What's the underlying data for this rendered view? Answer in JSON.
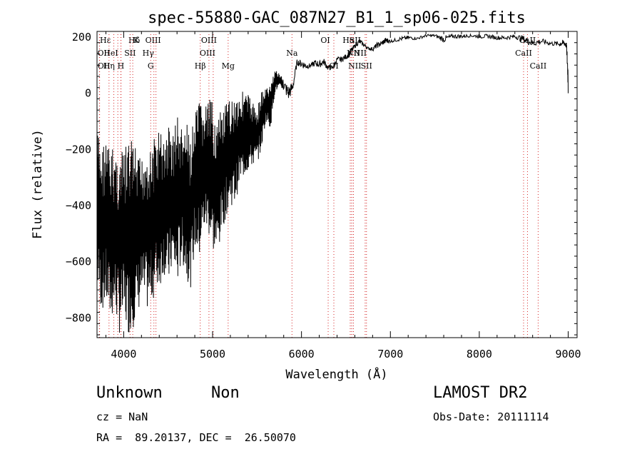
{
  "chart_data": {
    "type": "line",
    "title": "spec-55880-GAC_087N27_B1_1_sp06-025.fits",
    "xlabel": "Wavelength (Å)",
    "ylabel": "Flux (relative)",
    "xlim": [
      3700,
      9100
    ],
    "ylim": [
      -870,
      220
    ],
    "xticks": [
      4000,
      5000,
      6000,
      7000,
      8000,
      9000
    ],
    "yticks": [
      -800,
      -600,
      -400,
      -200,
      0,
      200
    ],
    "grid": false,
    "line_color": "#000000",
    "marker_color": "#d62728",
    "spectrum": {
      "x": [
        3700,
        3750,
        3800,
        3850,
        3900,
        3950,
        4000,
        4050,
        4100,
        4150,
        4200,
        4250,
        4300,
        4350,
        4400,
        4450,
        4500,
        4550,
        4600,
        4650,
        4700,
        4750,
        4800,
        4850,
        4900,
        4950,
        5000,
        5050,
        5100,
        5150,
        5200,
        5250,
        5300,
        5350,
        5400,
        5450,
        5500,
        5550,
        5600,
        5650,
        5700,
        5750,
        5800,
        5850,
        5900,
        5950,
        6000,
        6050,
        6100,
        6150,
        6200,
        6250,
        6300,
        6350,
        6400,
        6450,
        6500,
        6550,
        6600,
        6650,
        6700,
        6750,
        6800,
        6850,
        6900,
        6950,
        7000,
        7100,
        7200,
        7300,
        7400,
        7500,
        7600,
        7700,
        7800,
        7900,
        8000,
        8100,
        8200,
        8300,
        8400,
        8500,
        8600,
        8700,
        8800,
        8900,
        8950,
        8980,
        9000
      ],
      "upper": [
        -120,
        -180,
        -150,
        -200,
        -180,
        -220,
        -200,
        -170,
        -150,
        -220,
        -230,
        -160,
        -200,
        -150,
        -120,
        -160,
        -100,
        -140,
        -60,
        -120,
        -100,
        -150,
        -80,
        -20,
        -40,
        -20,
        -30,
        -90,
        -60,
        -40,
        -20,
        0,
        10,
        10,
        0,
        -30,
        -50,
        10,
        20,
        30,
        90,
        70,
        50,
        30,
        40,
        120,
        120,
        110,
        105,
        120,
        115,
        125,
        100,
        100,
        130,
        130,
        140,
        160,
        175,
        195,
        180,
        165,
        165,
        180,
        185,
        200,
        190,
        200,
        205,
        200,
        210,
        210,
        205,
        210,
        210,
        210,
        210,
        210,
        205,
        205,
        210,
        205,
        190,
        195,
        185,
        185,
        190,
        180,
        110
      ],
      "lower": [
        -700,
        -780,
        -760,
        -820,
        -780,
        -860,
        -820,
        -860,
        -840,
        -800,
        -740,
        -780,
        -760,
        -720,
        -700,
        -640,
        -700,
        -620,
        -700,
        -600,
        -650,
        -700,
        -560,
        -600,
        -500,
        -500,
        -560,
        -600,
        -500,
        -440,
        -400,
        -400,
        -330,
        -300,
        -280,
        -260,
        -250,
        -200,
        -100,
        -130,
        0,
        20,
        10,
        -30,
        0,
        100,
        90,
        85,
        90,
        95,
        90,
        100,
        80,
        85,
        110,
        110,
        120,
        130,
        160,
        175,
        165,
        155,
        150,
        160,
        170,
        175,
        180,
        185,
        190,
        190,
        200,
        200,
        180,
        195,
        195,
        200,
        195,
        195,
        190,
        190,
        195,
        180,
        165,
        175,
        170,
        165,
        170,
        160,
        0
      ]
    },
    "line_markers": [
      {
        "label": "Hε",
        "x": 3970,
        "row": 1,
        "dx": -22
      },
      {
        "label": "K",
        "x": 3934,
        "row": 1,
        "dx": 26
      },
      {
        "label": "Hδ",
        "x": 4102,
        "row": 1,
        "dx": 2
      },
      {
        "label": "OIII",
        "x": 4363,
        "row": 1,
        "dx": -4
      },
      {
        "label": "OIII",
        "x": 4959,
        "row": 1,
        "dx": 0
      },
      {
        "label": "OI",
        "x": 6300,
        "row": 1,
        "dx": -4
      },
      {
        "label": "Hα",
        "x": 6563,
        "row": 1,
        "dx": -4
      },
      {
        "label": "SII",
        "x": 6716,
        "row": 1,
        "dx": -14
      },
      {
        "label": "CaII",
        "x": 8542,
        "row": 1,
        "dx": 0
      },
      {
        "label": "OII",
        "x": 3727,
        "row": 2,
        "dx": 6
      },
      {
        "label": "HeI",
        "x": 3889,
        "row": 2,
        "dx": -4
      },
      {
        "label": "SII",
        "x": 4072,
        "row": 2,
        "dx": 0
      },
      {
        "label": "Hγ",
        "x": 4340,
        "row": 2,
        "dx": -8
      },
      {
        "label": "OIII",
        "x": 5007,
        "row": 2,
        "dx": -8
      },
      {
        "label": "Na",
        "x": 5893,
        "row": 2,
        "dx": 0
      },
      {
        "label": "NII",
        "x": 6583,
        "row": 2,
        "dx": 0
      },
      {
        "label": "NII",
        "x": 6548,
        "row": 2,
        "dx": 14
      },
      {
        "label": "CaII",
        "x": 8498,
        "row": 2,
        "dx": 0
      },
      {
        "label": "OII",
        "x": 3729,
        "row": 3,
        "dx": 6
      },
      {
        "label": "Hη",
        "x": 3835,
        "row": 3,
        "dx": 0
      },
      {
        "label": "H",
        "x": 3968,
        "row": 3,
        "dx": 0
      },
      {
        "label": "G",
        "x": 4304,
        "row": 3,
        "dx": 0
      },
      {
        "label": "Hβ",
        "x": 4861,
        "row": 3,
        "dx": 0
      },
      {
        "label": "Mg",
        "x": 5175,
        "row": 3,
        "dx": 0
      },
      {
        "label": "OI",
        "x": 6364,
        "row": 3,
        "dx": 0
      },
      {
        "label": "NII",
        "x": 6583,
        "row": 3,
        "dx": 2
      },
      {
        "label": "SII",
        "x": 6731,
        "row": 3,
        "dx": 0
      },
      {
        "label": "CaII",
        "x": 8662,
        "row": 3,
        "dx": 0
      }
    ]
  },
  "info": {
    "class": "Unknown",
    "subclass": "Non",
    "survey": "LAMOST DR2",
    "cz": "cz = NaN",
    "obs_date": "Obs-Date: 20111114",
    "radec": "RA =  89.20137, DEC =  26.50070"
  }
}
